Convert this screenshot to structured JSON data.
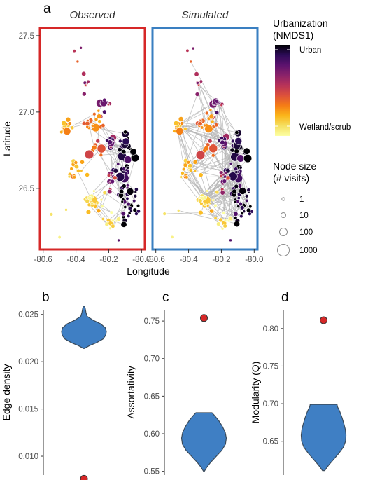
{
  "colors": {
    "observed_frame": "#d62828",
    "simulated_frame": "#3a7fc1",
    "edge": "#b3b3b3",
    "violin_fill": "#3f7fc4",
    "violin_stroke": "#3a4a5a",
    "observed_point": "#d62828"
  },
  "panel_a": {
    "letter": "a",
    "facets": [
      "Observed",
      "Simulated"
    ],
    "xlabel": "Longitude",
    "ylabel": "Latitude",
    "xticks": [
      -80.6,
      -80.4,
      -80.2,
      -80.0
    ],
    "xtick_labels": [
      "-80.6",
      "-80.4",
      "-80.2",
      "-80.0"
    ],
    "yticks": [
      26.5,
      27.0,
      27.5
    ],
    "ytick_labels": [
      "26.5",
      "27.0",
      "27.5"
    ],
    "xlim": [
      -80.62,
      -79.98
    ],
    "ylim": [
      26.1,
      27.55
    ],
    "color_legend": {
      "title_line1": "Urbanization",
      "title_line2": "(NMDS1)",
      "top_label": "Urban",
      "bottom_label": "Wetland/scrub",
      "gradient": [
        "#000004",
        "#2c0b57",
        "#5c126e",
        "#8a226a",
        "#b73259",
        "#dd513a",
        "#f57d15",
        "#fbb61a",
        "#f5e061",
        "#fcffa4"
      ]
    },
    "size_legend": {
      "title_line1": "Node size",
      "title_line2": "(# visits)",
      "entries": [
        {
          "label": "1",
          "visits": 1
        },
        {
          "label": "10",
          "visits": 10
        },
        {
          "label": "100",
          "visits": 100
        },
        {
          "label": "1000",
          "visits": 1000
        }
      ]
    }
  },
  "violins": [
    {
      "letter": "b",
      "ylabel": "Edge density",
      "yticks": [
        0.01,
        0.015,
        0.02,
        0.025
      ],
      "ytick_labels": [
        "0.010",
        "0.015",
        "0.020",
        "0.025"
      ],
      "ylim": [
        0.008,
        0.0255
      ],
      "observed": 0.0076,
      "profile": [
        [
          0.0214,
          0.02
        ],
        [
          0.0217,
          0.25
        ],
        [
          0.022,
          0.55
        ],
        [
          0.0224,
          0.85
        ],
        [
          0.0228,
          0.97
        ],
        [
          0.0232,
          1.0
        ],
        [
          0.0236,
          0.95
        ],
        [
          0.024,
          0.75
        ],
        [
          0.0244,
          0.4
        ],
        [
          0.0248,
          0.14
        ],
        [
          0.0252,
          0.09
        ],
        [
          0.0256,
          0.06
        ],
        [
          0.0259,
          0.02
        ]
      ]
    },
    {
      "letter": "c",
      "ylabel": "Assortativity",
      "yticks": [
        0.55,
        0.6,
        0.65,
        0.7,
        0.75
      ],
      "ytick_labels": [
        "0.55",
        "0.60",
        "0.65",
        "0.70",
        "0.75"
      ],
      "ylim": [
        0.545,
        0.765
      ],
      "observed": 0.754,
      "profile": [
        [
          0.55,
          0.02
        ],
        [
          0.555,
          0.12
        ],
        [
          0.562,
          0.3
        ],
        [
          0.57,
          0.55
        ],
        [
          0.578,
          0.8
        ],
        [
          0.586,
          0.96
        ],
        [
          0.594,
          1.0
        ],
        [
          0.602,
          0.95
        ],
        [
          0.61,
          0.82
        ],
        [
          0.618,
          0.65
        ],
        [
          0.624,
          0.48
        ],
        [
          0.628,
          0.36
        ]
      ]
    },
    {
      "letter": "d",
      "ylabel": "Modularity (Q)",
      "yticks": [
        0.65,
        0.7,
        0.75,
        0.8
      ],
      "ytick_labels": [
        "0.65",
        "0.70",
        "0.75",
        "0.80"
      ],
      "ylim": [
        0.605,
        0.825
      ],
      "observed": 0.811,
      "profile": [
        [
          0.611,
          0.05
        ],
        [
          0.618,
          0.22
        ],
        [
          0.626,
          0.45
        ],
        [
          0.634,
          0.68
        ],
        [
          0.642,
          0.88
        ],
        [
          0.65,
          0.98
        ],
        [
          0.658,
          1.0
        ],
        [
          0.666,
          0.97
        ],
        [
          0.674,
          0.9
        ],
        [
          0.682,
          0.82
        ],
        [
          0.69,
          0.72
        ],
        [
          0.696,
          0.62
        ],
        [
          0.699,
          0.6
        ]
      ]
    }
  ],
  "chart_data": [
    {
      "type": "scatter",
      "facets": [
        "Observed",
        "Simulated"
      ],
      "xlabel": "Longitude",
      "ylabel": "Latitude",
      "xlim": [
        -80.62,
        -79.98
      ],
      "ylim": [
        26.1,
        27.55
      ],
      "color_scale": {
        "title": "Urbanization (NMDS1)",
        "low": "Wetland/scrub",
        "high": "Urban"
      },
      "size_scale": {
        "title": "Node size (# visits)",
        "breaks": [
          1,
          10,
          100,
          1000
        ]
      }
    },
    {
      "type": "violin",
      "ylabel": "Edge density",
      "observed": 0.0076,
      "simulated_range": [
        0.0214,
        0.0259
      ]
    },
    {
      "type": "violin",
      "ylabel": "Assortativity",
      "observed": 0.754,
      "simulated_range": [
        0.55,
        0.628
      ]
    },
    {
      "type": "violin",
      "ylabel": "Modularity (Q)",
      "observed": 0.811,
      "simulated_range": [
        0.611,
        0.699
      ]
    }
  ]
}
